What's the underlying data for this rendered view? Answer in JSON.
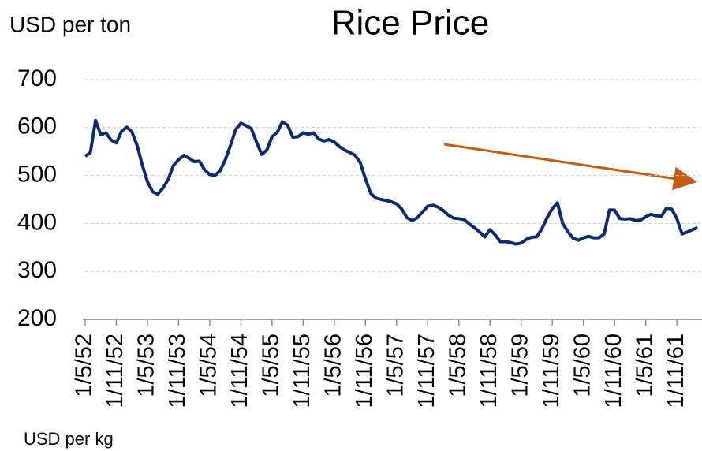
{
  "chart_data": {
    "type": "line",
    "title": "Rice Price",
    "y_label": "USD per ton",
    "next_chart_y_label": "USD per kg",
    "categories": [
      "1/5/52",
      null,
      null,
      null,
      null,
      null,
      "1/11/52",
      null,
      null,
      null,
      null,
      null,
      "1/5/53",
      null,
      null,
      null,
      null,
      null,
      "1/11/53",
      null,
      null,
      null,
      null,
      null,
      "1/5/54",
      null,
      null,
      null,
      null,
      null,
      "1/11/54",
      null,
      null,
      null,
      null,
      null,
      "1/5/55",
      null,
      null,
      null,
      null,
      null,
      "1/11/55",
      null,
      null,
      null,
      null,
      null,
      "1/5/56",
      null,
      null,
      null,
      null,
      null,
      "1/11/56",
      null,
      null,
      null,
      null,
      null,
      "1/5/57",
      null,
      null,
      null,
      null,
      null,
      "1/11/57",
      null,
      null,
      null,
      null,
      null,
      "1/5/58",
      null,
      null,
      null,
      null,
      null,
      "1/11/58",
      null,
      null,
      null,
      null,
      null,
      "1/5/59",
      null,
      null,
      null,
      null,
      null,
      "1/11/59",
      null,
      null,
      null,
      null,
      null,
      "1/5/60",
      null,
      null,
      null,
      null,
      null,
      "1/11/60",
      null,
      null,
      null,
      null,
      null,
      "1/5/61",
      null,
      null,
      null,
      null,
      null,
      "1/11/61",
      null,
      null,
      null,
      null
    ],
    "values": [
      540,
      548,
      615,
      585,
      589,
      574,
      568,
      592,
      601,
      591,
      563,
      522,
      487,
      466,
      461,
      474,
      492,
      521,
      533,
      542,
      536,
      529,
      530,
      512,
      502,
      500,
      510,
      533,
      563,
      596,
      609,
      604,
      598,
      570,
      544,
      553,
      581,
      590,
      612,
      605,
      580,
      581,
      589,
      586,
      589,
      576,
      572,
      575,
      570,
      560,
      553,
      548,
      542,
      527,
      493,
      463,
      453,
      450,
      448,
      445,
      441,
      430,
      412,
      406,
      412,
      424,
      436,
      438,
      434,
      427,
      417,
      411,
      410,
      408,
      399,
      391,
      382,
      372,
      387,
      376,
      362,
      362,
      360,
      357,
      359,
      367,
      371,
      372,
      389,
      412,
      431,
      443,
      400,
      383,
      369,
      365,
      370,
      373,
      370,
      370,
      378,
      428,
      428,
      410,
      409,
      410,
      406,
      407,
      414,
      419,
      416,
      415,
      432,
      430,
      410,
      378,
      382,
      387,
      391
    ],
    "color": "#0d2a6b",
    "ylim": [
      200,
      700
    ],
    "yticks": [
      200,
      300,
      400,
      500,
      600,
      700
    ],
    "grid": true
  }
}
